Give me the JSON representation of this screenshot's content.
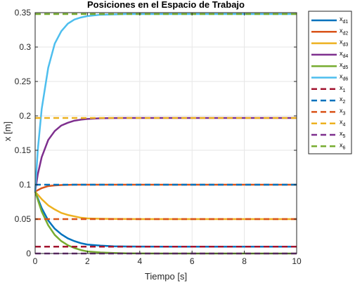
{
  "chart_data": {
    "type": "line",
    "title": "Posiciones en el Espacio de Trabajo",
    "xlabel": "Tiempo [s]",
    "ylabel": "x [m]",
    "xlim": [
      0,
      10
    ],
    "ylim": [
      0,
      0.35
    ],
    "xticks": [
      "0",
      "2",
      "4",
      "6",
      "8",
      "10"
    ],
    "yticks": [
      "0",
      "0.05",
      "0.1",
      "0.15",
      "0.2",
      "0.25",
      "0.3",
      "0.35"
    ],
    "grid": true,
    "legend_position": "outside-right",
    "series": [
      {
        "name": "x",
        "sub": "d1",
        "style": "solid",
        "color": "#0072BD",
        "x": [
          0,
          0.25,
          0.5,
          0.75,
          1,
          1.25,
          1.5,
          1.75,
          2,
          2.5,
          3,
          3.5,
          4,
          5,
          6,
          7,
          8,
          9,
          10
        ],
        "values": [
          0.09,
          0.066,
          0.048,
          0.036,
          0.028,
          0.022,
          0.018,
          0.015,
          0.013,
          0.0115,
          0.0105,
          0.0102,
          0.0101,
          0.01,
          0.01,
          0.01,
          0.01,
          0.01,
          0.01
        ]
      },
      {
        "name": "x",
        "sub": "d2",
        "style": "solid",
        "color": "#D95319",
        "x": [
          0,
          0.25,
          0.5,
          0.75,
          1,
          1.5,
          2,
          2.5,
          3,
          4,
          5,
          6,
          7,
          8,
          9,
          10
        ],
        "values": [
          0.09,
          0.095,
          0.098,
          0.099,
          0.0995,
          0.1,
          0.1,
          0.1,
          0.1,
          0.1,
          0.1,
          0.1,
          0.1,
          0.1,
          0.1,
          0.1
        ]
      },
      {
        "name": "x",
        "sub": "d3",
        "style": "solid",
        "color": "#EDB120",
        "x": [
          0,
          0.25,
          0.5,
          0.75,
          1,
          1.25,
          1.5,
          1.75,
          2,
          2.5,
          3,
          3.5,
          4,
          5,
          6,
          7,
          8,
          9,
          10
        ],
        "values": [
          0.09,
          0.079,
          0.07,
          0.064,
          0.059,
          0.056,
          0.054,
          0.052,
          0.051,
          0.0505,
          0.0502,
          0.0501,
          0.05,
          0.05,
          0.05,
          0.05,
          0.05,
          0.05,
          0.05
        ]
      },
      {
        "name": "x",
        "sub": "d4",
        "style": "solid",
        "color": "#7E2F8E",
        "x": [
          0,
          0.1,
          0.25,
          0.5,
          0.75,
          1,
          1.25,
          1.5,
          1.75,
          2,
          2.5,
          3,
          3.5,
          4,
          5,
          6,
          7,
          8,
          9,
          10
        ],
        "values": [
          0.09,
          0.115,
          0.14,
          0.165,
          0.178,
          0.186,
          0.19,
          0.193,
          0.1945,
          0.1955,
          0.1965,
          0.1968,
          0.197,
          0.197,
          0.197,
          0.197,
          0.197,
          0.197,
          0.197,
          0.197
        ]
      },
      {
        "name": "x",
        "sub": "d5",
        "style": "solid",
        "color": "#77AC30",
        "x": [
          0,
          0.25,
          0.5,
          0.75,
          1,
          1.25,
          1.5,
          1.75,
          2,
          2.5,
          3,
          3.5,
          4,
          5,
          6,
          7,
          8,
          9,
          10
        ],
        "values": [
          0.09,
          0.061,
          0.041,
          0.027,
          0.018,
          0.012,
          0.008,
          0.005,
          0.003,
          0.0015,
          0.0007,
          0.0003,
          0.0001,
          0,
          0,
          0,
          0,
          0,
          0
        ]
      },
      {
        "name": "x",
        "sub": "d6",
        "style": "solid",
        "color": "#4DBEEE",
        "x": [
          0,
          0.1,
          0.25,
          0.5,
          0.75,
          1,
          1.25,
          1.5,
          1.75,
          2,
          2.5,
          3,
          3.5,
          4,
          5,
          6,
          7,
          8,
          9,
          10
        ],
        "values": [
          0.09,
          0.15,
          0.21,
          0.27,
          0.305,
          0.323,
          0.334,
          0.34,
          0.343,
          0.345,
          0.347,
          0.3475,
          0.348,
          0.348,
          0.348,
          0.348,
          0.348,
          0.348,
          0.348,
          0.348
        ]
      },
      {
        "name": "x",
        "sub": "1",
        "style": "dashed",
        "color": "#A2142F",
        "x": [
          0,
          10
        ],
        "values": [
          0.01,
          0.01
        ]
      },
      {
        "name": "x",
        "sub": "2",
        "style": "dashed",
        "color": "#0072BD",
        "x": [
          0,
          10
        ],
        "values": [
          0.1,
          0.1
        ]
      },
      {
        "name": "x",
        "sub": "3",
        "style": "dashed",
        "color": "#D95319",
        "x": [
          0,
          10
        ],
        "values": [
          0.05,
          0.05
        ]
      },
      {
        "name": "x",
        "sub": "4",
        "style": "dashed",
        "color": "#EDB120",
        "x": [
          0,
          10
        ],
        "values": [
          0.197,
          0.197
        ]
      },
      {
        "name": "x",
        "sub": "5",
        "style": "dashed",
        "color": "#7E2F8E",
        "x": [
          0,
          10
        ],
        "values": [
          0,
          0
        ]
      },
      {
        "name": "x",
        "sub": "6",
        "style": "dashed",
        "color": "#77AC30",
        "x": [
          0,
          10
        ],
        "values": [
          0.348,
          0.348
        ]
      }
    ]
  }
}
